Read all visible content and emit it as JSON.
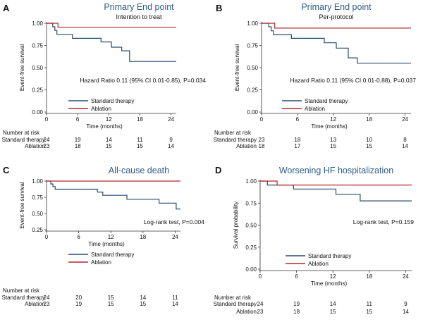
{
  "colors": {
    "standard": "#2a4a6e",
    "ablation": "#b0282b",
    "title": "#2e5c8a",
    "axis": "#333333",
    "text": "#111111"
  },
  "number_at_risk_label": "Number at risk",
  "chart_data": [
    {
      "type": "line",
      "panel": "A",
      "title": "Primary End point",
      "subtitle": "Intention to treat",
      "xlabel": "Time (months)",
      "ylabel": "Event-free survival",
      "xlim": [
        0,
        25
      ],
      "ylim": [
        0,
        1
      ],
      "xticks": [
        0,
        6,
        12,
        18,
        24
      ],
      "yticks": [
        0,
        0.25,
        0.5,
        0.75,
        1
      ],
      "ytick_labels": [
        "0.00",
        "0.25",
        "0.50",
        "0.75",
        "1.00"
      ],
      "annotation": "Hazard Ratio 0.11 (95% CI 0.01-0.85), P=0.034",
      "series": [
        {
          "name": "Standard therapy",
          "key": "standard",
          "x": [
            0,
            1.2,
            1.2,
            1.6,
            1.6,
            2,
            2,
            5,
            5,
            10.5,
            10.5,
            12.5,
            12.5,
            14.5,
            14.5,
            16,
            16,
            25
          ],
          "y": [
            1,
            1,
            0.96,
            0.96,
            0.92,
            0.92,
            0.875,
            0.875,
            0.83,
            0.83,
            0.79,
            0.79,
            0.73,
            0.73,
            0.69,
            0.69,
            0.57,
            0.57
          ]
        },
        {
          "name": "Ablation",
          "key": "ablation",
          "x": [
            0,
            2.2,
            2.2,
            25
          ],
          "y": [
            1,
            1,
            0.955,
            0.955
          ]
        }
      ],
      "at_risk": [
        {
          "label": "Standard therapy",
          "values": [
            "24",
            "19",
            "14",
            "11",
            "9"
          ]
        },
        {
          "label": "Ablation",
          "values": [
            "23",
            "18",
            "15",
            "15",
            "14"
          ]
        }
      ]
    },
    {
      "type": "line",
      "panel": "B",
      "title": "Primary End point",
      "subtitle": "Per-protocol",
      "xlabel": "Time (months)",
      "ylabel": "Event-free survival",
      "xlim": [
        0,
        25
      ],
      "ylim": [
        0,
        1
      ],
      "xticks": [
        0,
        6,
        12,
        18,
        24
      ],
      "yticks": [
        0,
        0.25,
        0.5,
        0.75,
        1
      ],
      "ytick_labels": [
        "0.00",
        "0.25",
        "0.50",
        "0.75",
        "1.00"
      ],
      "annotation": "Hazard Ratio 0.11 (95% CI 0.01-0.88), P=0.037",
      "series": [
        {
          "name": "Standard therapy",
          "key": "standard",
          "x": [
            0,
            1.2,
            1.2,
            1.6,
            1.6,
            2,
            2,
            5,
            5,
            10.5,
            10.5,
            12.5,
            12.5,
            14.5,
            14.5,
            16,
            16,
            25
          ],
          "y": [
            1,
            1,
            0.96,
            0.96,
            0.915,
            0.915,
            0.87,
            0.87,
            0.83,
            0.83,
            0.78,
            0.78,
            0.72,
            0.72,
            0.61,
            0.61,
            0.55,
            0.55
          ]
        },
        {
          "name": "Ablation",
          "key": "ablation",
          "x": [
            0,
            2.2,
            2.2,
            25
          ],
          "y": [
            1,
            1,
            0.945,
            0.945
          ]
        }
      ],
      "at_risk": [
        {
          "label": "Standard therapy",
          "values": [
            "23",
            "18",
            "13",
            "10",
            "8"
          ]
        },
        {
          "label": "Ablation",
          "values": [
            "18",
            "17",
            "15",
            "15",
            "14"
          ]
        }
      ]
    },
    {
      "type": "line",
      "panel": "C",
      "title": "All-cause death",
      "subtitle": "",
      "xlabel": "Time (months)",
      "ylabel": "Event-free survival",
      "xlim": [
        0,
        25
      ],
      "ylim": [
        0.25,
        1
      ],
      "xticks": [
        0,
        6,
        12,
        18,
        24
      ],
      "yticks": [
        0.25,
        0.5,
        0.75,
        1
      ],
      "ytick_labels": [
        "0.25",
        "0.50",
        "0.75",
        "1.00"
      ],
      "annotation": "Log-rank test, P=0.004",
      "series": [
        {
          "name": "Standard therapy",
          "key": "standard",
          "x": [
            0,
            0.8,
            0.8,
            1.2,
            1.2,
            1.6,
            1.6,
            9.5,
            9.5,
            10.5,
            10.5,
            15,
            15,
            21,
            21,
            24.2,
            24.2,
            25
          ],
          "y": [
            1,
            1,
            0.955,
            0.955,
            0.915,
            0.915,
            0.875,
            0.875,
            0.83,
            0.83,
            0.78,
            0.78,
            0.72,
            0.72,
            0.66,
            0.66,
            0.57,
            0.57
          ]
        },
        {
          "name": "Ablation",
          "key": "ablation",
          "x": [
            0,
            25
          ],
          "y": [
            1,
            1
          ]
        }
      ],
      "at_risk": [
        {
          "label": "Standard therapy",
          "values": [
            "24",
            "20",
            "15",
            "14",
            "11"
          ]
        },
        {
          "label": "Ablation",
          "values": [
            "23",
            "19",
            "15",
            "15",
            "14"
          ]
        }
      ]
    },
    {
      "type": "line",
      "panel": "D",
      "title": "Worsening HF hospitalization",
      "subtitle": "",
      "xlabel": "Time (months)",
      "ylabel": "Survival probability",
      "xlim": [
        0,
        25
      ],
      "ylim": [
        0,
        1
      ],
      "xticks": [
        0,
        6,
        12,
        18,
        24
      ],
      "yticks": [
        0,
        0.25,
        0.5,
        0.75,
        1
      ],
      "ytick_labels": [
        "0.00",
        "0.25",
        "0.50",
        "0.75",
        "1.00"
      ],
      "annotation": "Log-rank test, P=0.159",
      "series": [
        {
          "name": "Standard therapy",
          "key": "standard",
          "x": [
            0,
            1.2,
            1.2,
            5.5,
            5.5,
            12.5,
            12.5,
            16.5,
            16.5,
            25
          ],
          "y": [
            1,
            1,
            0.955,
            0.955,
            0.91,
            0.91,
            0.85,
            0.85,
            0.775,
            0.775
          ]
        },
        {
          "name": "Ablation",
          "key": "ablation",
          "x": [
            0,
            2.8,
            2.8,
            25
          ],
          "y": [
            1,
            1,
            0.955,
            0.955
          ]
        }
      ],
      "at_risk": [
        {
          "label": "Standard therapy",
          "values": [
            "24",
            "19",
            "14",
            "11",
            "9"
          ]
        },
        {
          "label": "Ablation",
          "values": [
            "23",
            "18",
            "15",
            "15",
            "14"
          ]
        }
      ]
    }
  ]
}
